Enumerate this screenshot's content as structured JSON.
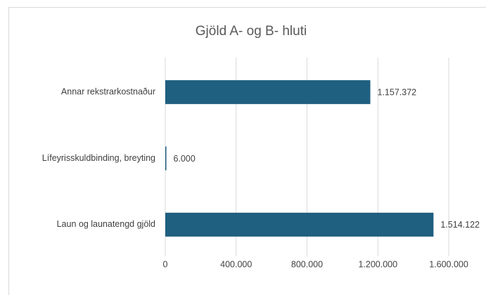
{
  "chart_data": {
    "type": "barh",
    "title": "Gjöld A- og B- hluti",
    "categories": [
      "Annar rekstrarkostnaður",
      "Lífeyrisskuldbinding, breyting",
      "Laun og launatengd gjöld"
    ],
    "values": [
      1157372,
      6000,
      1514122
    ],
    "value_labels": [
      "1.157.372",
      "6.000",
      "1.514.122"
    ],
    "color": "#1f5f7f",
    "xlim": [
      0,
      1800000
    ],
    "xticks": [
      0,
      {
        "value": 400000,
        "label": "400.000"
      },
      {
        "value": 800000,
        "label": "800.000"
      },
      {
        "value": 1200000,
        "label": "1.200.000"
      },
      {
        "value": 1600000,
        "label": "1.600.000"
      }
    ],
    "grid": true
  }
}
